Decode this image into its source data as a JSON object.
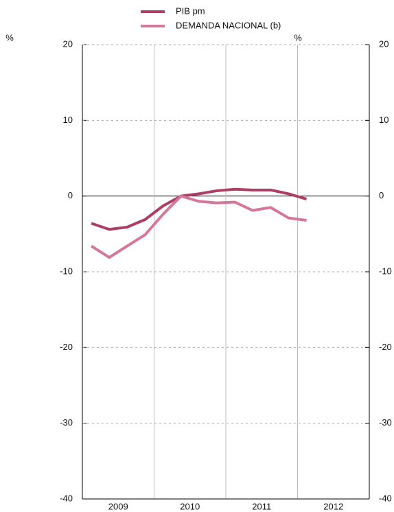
{
  "chart_data": {
    "type": "line",
    "ylabel": "%",
    "y2label": "%",
    "categories": [
      "2009",
      null,
      null,
      null,
      "2010",
      null,
      null,
      null,
      "2011",
      null,
      null,
      null,
      "2012"
    ],
    "series": [
      {
        "name": "PIB pm",
        "color": "#ad3f66",
        "values": [
          -3.6,
          -4.4,
          -4.1,
          -3.1,
          -1.3,
          0.0,
          0.3,
          0.7,
          0.9,
          0.8,
          0.8,
          0.3,
          -0.4
        ]
      },
      {
        "name": "DEMANDA NACIONAL (b)",
        "color": "#d5779b",
        "values": [
          -6.6,
          -8.1,
          -6.6,
          -5.1,
          -2.4,
          0.0,
          -0.7,
          -0.9,
          -0.8,
          -1.9,
          -1.5,
          -2.9,
          -3.2
        ]
      }
    ],
    "ylim": [
      -40,
      20
    ],
    "yticks": [
      -40,
      -30,
      -20,
      -10,
      0,
      10,
      20
    ],
    "y2lim": [
      -40,
      20
    ],
    "y2ticks": [
      -40,
      -30,
      -20,
      -10,
      0,
      10,
      20
    ],
    "grid": true
  }
}
